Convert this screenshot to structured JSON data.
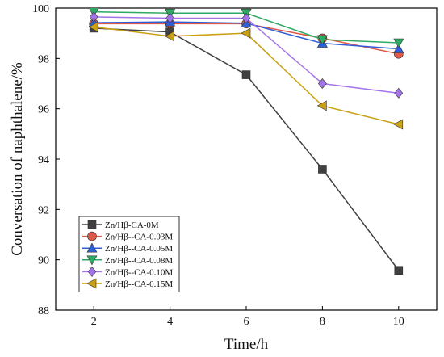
{
  "chart_data": {
    "type": "line",
    "xlabel": "Time/h",
    "ylabel": "Conversation of naphthalene/%",
    "xlim": [
      1,
      11
    ],
    "ylim": [
      88,
      100
    ],
    "x_ticks": [
      "2",
      "4",
      "6",
      "8",
      "10"
    ],
    "y_ticks": [
      "88",
      "90",
      "92",
      "94",
      "96",
      "98",
      "100"
    ],
    "x": [
      2,
      4,
      6,
      8,
      10
    ],
    "grid": false,
    "legend_position": "bottom-left",
    "series": [
      {
        "name": "Zn/Hβ-CA-0M",
        "color": "#404040",
        "marker": "square",
        "values": [
          99.2,
          99.05,
          97.35,
          93.6,
          89.58
        ]
      },
      {
        "name": "Zn/Hβ--CA-0.03M",
        "color": "#e05a4a",
        "marker": "circle",
        "values": [
          99.38,
          99.38,
          99.38,
          98.8,
          98.18
        ]
      },
      {
        "name": "Zn/Hβ--CA-0.05M",
        "color": "#2e5fd6",
        "marker": "triangle-up",
        "values": [
          99.42,
          99.45,
          99.4,
          98.6,
          98.38
        ]
      },
      {
        "name": "Zn/Hβ--CA-0.08M",
        "color": "#2eaa63",
        "marker": "triangle-down",
        "values": [
          99.85,
          99.8,
          99.8,
          98.75,
          98.62
        ]
      },
      {
        "name": "Zn/Hβ--CA-0.10M",
        "color": "#a374e8",
        "marker": "diamond",
        "values": [
          99.65,
          99.6,
          99.6,
          97.0,
          96.62
        ]
      },
      {
        "name": "Zn/Hβ--CA-0.15M",
        "color": "#c9a012",
        "marker": "triangle-left",
        "values": [
          99.25,
          98.88,
          99.0,
          96.12,
          95.38
        ]
      }
    ]
  }
}
